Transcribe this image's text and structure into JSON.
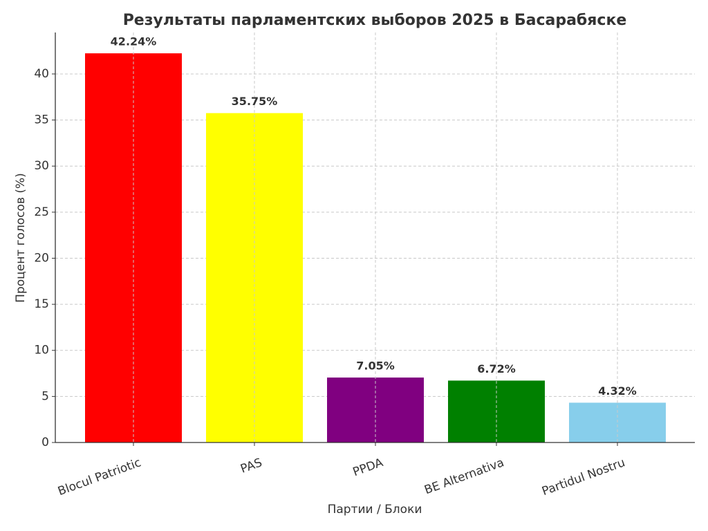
{
  "chart_data": {
    "type": "bar",
    "title": "Результаты парламентских выборов 2025 в Басарабяске",
    "x_label": "Партии / Блоки",
    "y_label": "Процент голосов (%)",
    "categories": [
      "Blocul Patriotic",
      "PAS",
      "PPDA",
      "BE Alternativa",
      "Partidul Nostru"
    ],
    "values": [
      42.24,
      35.75,
      7.05,
      6.72,
      4.32
    ],
    "value_labels": [
      "42.24%",
      "35.75%",
      "7.05%",
      "6.72%",
      "4.32%"
    ],
    "colors": [
      "#ff0000",
      "#ffff00",
      "#800080",
      "#008000",
      "#87ceeb"
    ],
    "ylim": [
      0,
      44.5
    ],
    "yticks": [
      0,
      5,
      10,
      15,
      20,
      25,
      30,
      35,
      40
    ],
    "grid": true
  }
}
